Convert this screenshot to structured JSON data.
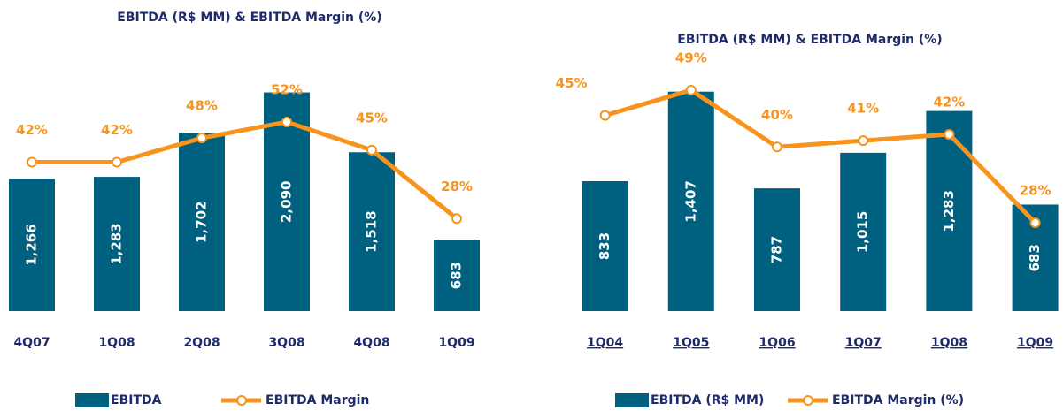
{
  "chart_data": [
    {
      "type": "bar",
      "title": "EBITDA (R$ MM) & EBITDA Margin (%)",
      "categories": [
        "4Q07",
        "1Q08",
        "2Q08",
        "3Q08",
        "4Q08",
        "1Q09"
      ],
      "ylim": [
        0,
        2500
      ],
      "y2lim": [
        5,
        70
      ],
      "series": [
        {
          "name": "EBITDA",
          "color": "#006080",
          "values": [
            1266,
            1283,
            1702,
            2090,
            1518,
            683
          ],
          "value_labels": [
            "1,266",
            "1,283",
            "1,702",
            "2,090",
            "1,518",
            "683"
          ]
        },
        {
          "name": "EBITDA Margin",
          "color": "#f7941d",
          "axis": "y2",
          "values": [
            42,
            42,
            48,
            52,
            45,
            28
          ],
          "value_labels": [
            "42%",
            "42%",
            "48%",
            "52%",
            "45%",
            "28%"
          ]
        }
      ]
    },
    {
      "type": "bar",
      "title": "EBITDA (R$ MM) & EBITDA Margin (%)",
      "categories": [
        "1Q04",
        "1Q05",
        "1Q06",
        "1Q07",
        "1Q08",
        "1Q09"
      ],
      "ylim": [
        0,
        1700
      ],
      "y2lim": [
        14,
        56
      ],
      "series": [
        {
          "name": "EBITDA (R$ MM)",
          "color": "#006080",
          "values": [
            833,
            1407,
            787,
            1015,
            1283,
            683
          ],
          "value_labels": [
            "833",
            "1,407",
            "787",
            "1,015",
            "1,283",
            "683"
          ]
        },
        {
          "name": "EBITDA Margin (%)",
          "color": "#f7941d",
          "axis": "y2",
          "values": [
            45,
            49,
            40,
            41,
            42,
            28
          ],
          "value_labels": [
            "45%",
            "49%",
            "40%",
            "41%",
            "42%",
            "28%"
          ]
        }
      ]
    }
  ]
}
